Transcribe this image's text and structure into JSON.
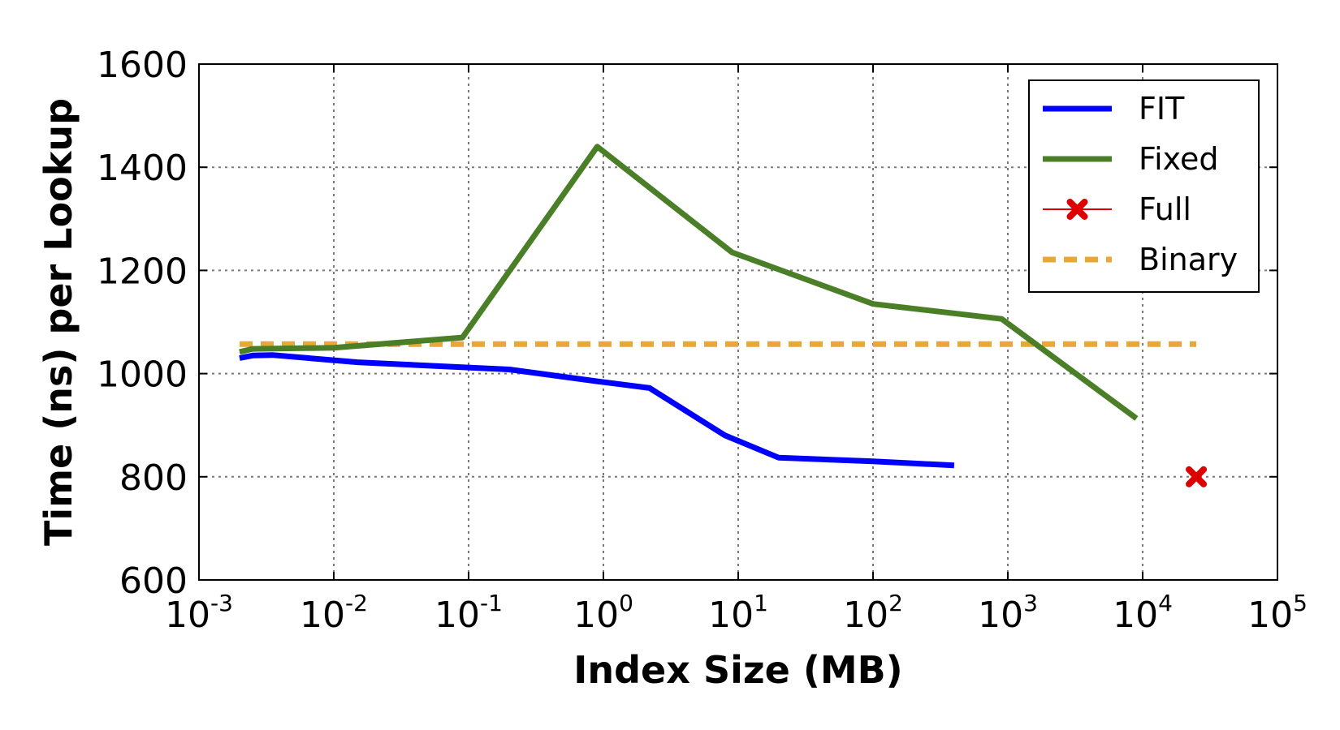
{
  "chart_data": {
    "type": "line",
    "xlabel": "Index Size (MB)",
    "ylabel": "Time (ns) per Lookup",
    "xscale": "log",
    "xlim": [
      0.001,
      100000
    ],
    "ylim": [
      600,
      1600
    ],
    "x_ticks": [
      {
        "base": "10",
        "exp": "-3",
        "value": 0.001
      },
      {
        "base": "10",
        "exp": "-2",
        "value": 0.01
      },
      {
        "base": "10",
        "exp": "-1",
        "value": 0.1
      },
      {
        "base": "10",
        "exp": "0",
        "value": 1
      },
      {
        "base": "10",
        "exp": "1",
        "value": 10
      },
      {
        "base": "10",
        "exp": "2",
        "value": 100
      },
      {
        "base": "10",
        "exp": "3",
        "value": 1000
      },
      {
        "base": "10",
        "exp": "4",
        "value": 10000
      },
      {
        "base": "10",
        "exp": "5",
        "value": 100000
      }
    ],
    "y_ticks": [
      "600",
      "800",
      "1000",
      "1200",
      "1400",
      "1600"
    ],
    "grid": true,
    "legend_position": "top-right",
    "series": [
      {
        "name": "FIT",
        "color": "#0000ff",
        "style": "solid",
        "x": [
          0.002,
          0.0025,
          0.0035,
          0.015,
          0.2,
          0.9,
          2.2,
          8,
          20,
          100,
          400
        ],
        "y": [
          1030,
          1035,
          1036,
          1022,
          1008,
          985,
          972,
          880,
          837,
          830,
          822
        ]
      },
      {
        "name": "Fixed",
        "color": "#4a7f28",
        "style": "solid",
        "x": [
          0.002,
          0.0025,
          0.01,
          0.09,
          0.9,
          9,
          100,
          900,
          9000
        ],
        "y": [
          1042,
          1048,
          1050,
          1070,
          1440,
          1235,
          1135,
          1106,
          913
        ]
      },
      {
        "name": "Full",
        "color": "#dd0000",
        "style": "marker-x",
        "x": [
          25000
        ],
        "y": [
          800
        ]
      },
      {
        "name": "Binary",
        "color": "#e8a838",
        "style": "dashed",
        "x": [
          0.002,
          25000
        ],
        "y": [
          1057,
          1057
        ]
      }
    ]
  }
}
